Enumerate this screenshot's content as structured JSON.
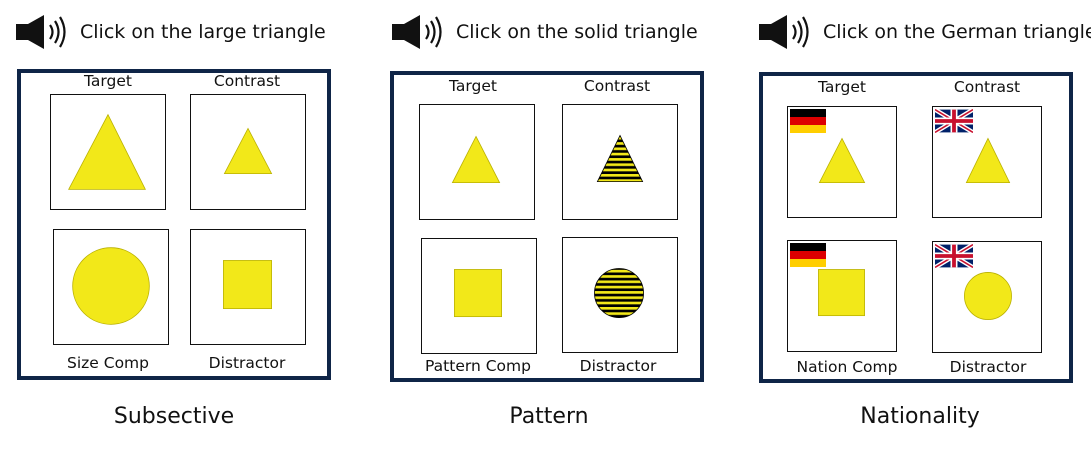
{
  "panels": [
    {
      "instruction": "Click on the large triangle",
      "caption": "Subsective",
      "labels": {
        "top_left": "Target",
        "top_right": "Contrast",
        "bottom_left": "Size Comp",
        "bottom_right": "Distractor"
      }
    },
    {
      "instruction": "Click on the solid triangle",
      "caption": "Pattern",
      "labels": {
        "top_left": "Target",
        "top_right": "Contrast",
        "bottom_left": "Pattern Comp",
        "bottom_right": "Distractor"
      }
    },
    {
      "instruction": "Click on the German triangle",
      "caption": "Nationality",
      "labels": {
        "top_left": "Target",
        "top_right": "Contrast",
        "bottom_left": "Nation Comp",
        "bottom_right": "Distractor"
      }
    }
  ],
  "colors": {
    "shape_fill": "#f2e819",
    "frame": "#0f2547",
    "stripe": "#000000"
  },
  "icons": {
    "speaker": "speaker-icon",
    "flag_de": "german-flag-icon",
    "flag_uk": "uk-flag-icon"
  }
}
